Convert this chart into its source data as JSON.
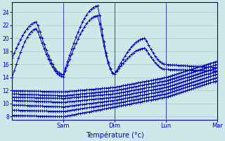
{
  "xlabel": "Température (°c)",
  "ylim": [
    7.5,
    25.5
  ],
  "yticks": [
    8,
    10,
    12,
    14,
    16,
    18,
    20,
    22,
    24
  ],
  "bg_color": "#cce8e8",
  "line_color": "#0000bb",
  "grid_color": "#aacccc",
  "day_labels": [
    "Sam",
    "Dim",
    "Lun",
    "Mar"
  ],
  "day_positions": [
    0.25,
    0.5,
    0.75,
    1.0
  ],
  "n_points": 97
}
